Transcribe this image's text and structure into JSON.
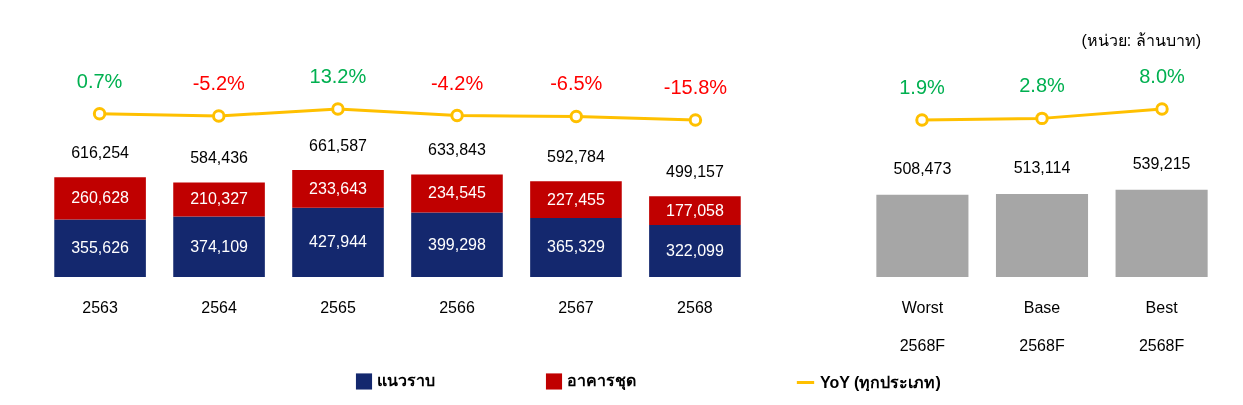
{
  "chart_data": [
    {
      "type": "line",
      "categories": [
        null,
        null,
        null,
        null,
        null,
        null
      ],
      "series": [
        {
          "name": "YoY (ทุกประเภท)",
          "color": "#ffc000",
          "values": [
            0.7,
            -5.2,
            13.2,
            -4.2,
            -6.5,
            -15.8
          ],
          "value_labels": [
            "0.7%",
            "-5.2%",
            "13.2%",
            "-4.2%",
            "-6.5%",
            "-15.8%"
          ]
        }
      ],
      "marker": "circle",
      "legend": "bottom",
      "tick_labels": false
    },
    {
      "type": "bar",
      "stacked": true,
      "categories": [
        "2563",
        "2564",
        "2565",
        "2566",
        "2567",
        "2568"
      ],
      "series": [
        {
          "name": "แนวราบ",
          "color": "#14286e",
          "values": [
            355626,
            374109,
            427944,
            399298,
            365329,
            322099
          ],
          "value_labels": [
            "355,626",
            "374,109",
            "427,944",
            "399,298",
            "365,329",
            "322,099"
          ]
        },
        {
          "name": "อาคารชุด",
          "color": "#c00000",
          "values": [
            260628,
            210327,
            233643,
            234545,
            227455,
            177058
          ],
          "value_labels": [
            "260,628",
            "210,327",
            "233,643",
            "234,545",
            "227,455",
            "177,058"
          ]
        }
      ],
      "totals": [
        "616,254",
        "584,436",
        "661,587",
        "633,843",
        "592,784",
        "499,157"
      ],
      "legend": "bottom",
      "tick_labels": "x"
    },
    {
      "type": "line",
      "categories": [
        null,
        null,
        null
      ],
      "series": [
        {
          "color": "#ffc000",
          "values": [
            1.9,
            2.8,
            8.0
          ],
          "value_labels": [
            "1.9%",
            "2.8%",
            "8.0%"
          ]
        }
      ],
      "marker": "circle",
      "tick_labels": false
    },
    {
      "type": "bar",
      "categories": [
        "Worst 2568F",
        "Base 2568F",
        "Best 2568F"
      ],
      "series": [
        {
          "color": "#a6a6a6",
          "values": [
            508473,
            513114,
            539215
          ],
          "value_labels": [
            "508,473",
            "513,114",
            "539,215"
          ]
        }
      ],
      "tick_labels": "x",
      "annotations": [
        "(หน่วย: ล้านบาท)"
      ]
    }
  ]
}
